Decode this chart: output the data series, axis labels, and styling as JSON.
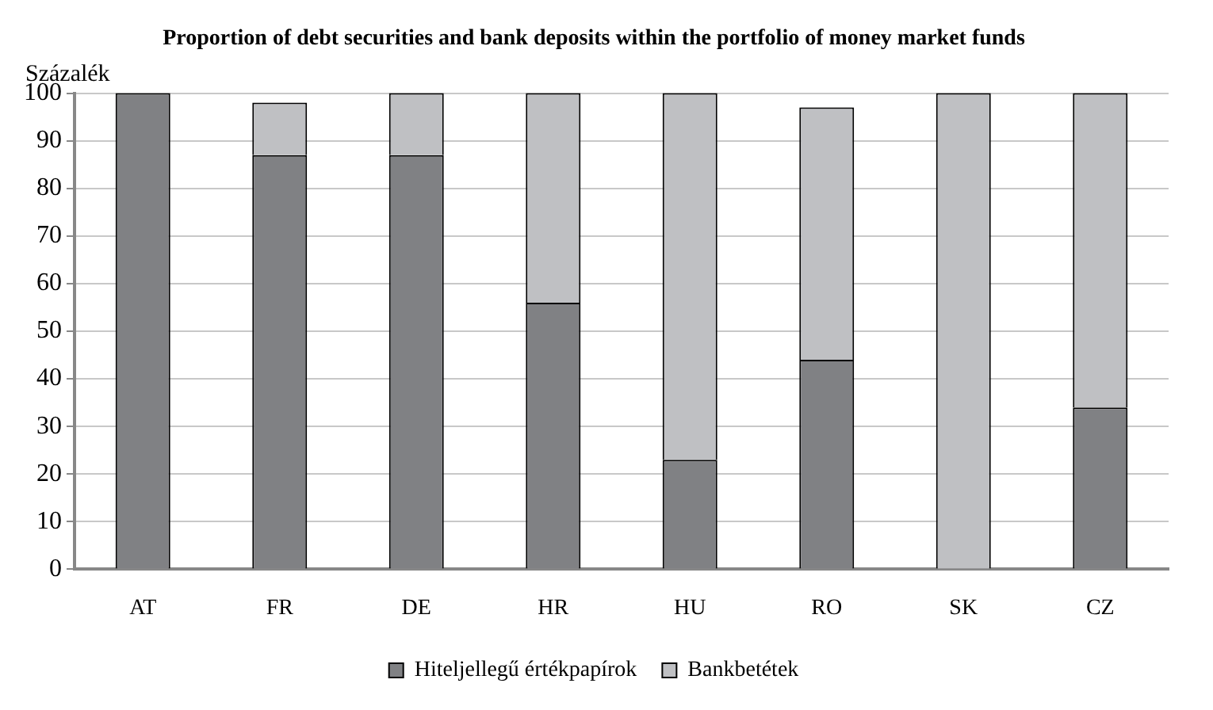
{
  "chart_data": {
    "type": "bar",
    "title": "Proportion of debt securities and bank deposits within the portfolio of money market funds",
    "ylabel": "Százalék",
    "categories": [
      "AT",
      "FR",
      "DE",
      "HR",
      "HU",
      "RO",
      "SK",
      "CZ"
    ],
    "stacked": true,
    "series": [
      {
        "name": "Hiteljellegű értékpapírok",
        "color": "#808184",
        "values": [
          100,
          87,
          87,
          56,
          23,
          44,
          0,
          34
        ]
      },
      {
        "name": "Bankbetétek",
        "color": "#bfc0c3",
        "values": [
          0,
          11,
          13,
          44,
          77,
          53,
          100,
          66
        ]
      }
    ],
    "ylim": [
      0,
      100
    ],
    "yticks": [
      0,
      10,
      20,
      30,
      40,
      50,
      60,
      70,
      80,
      90,
      100
    ],
    "grid": "y",
    "legend": "bottom"
  }
}
